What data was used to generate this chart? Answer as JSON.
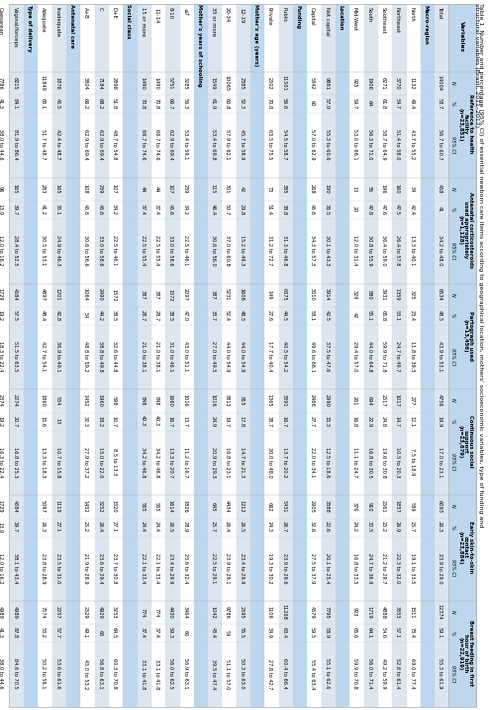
{
  "title_line1": "Table 1  Number and percentage (95% CI) of essential newborn care items according to geographical location, mothers' socioeconomic variables, type of funding and",
  "title_line2": "structural variables (Brazil, 2011–2012)",
  "col_headers": [
    [
      "Reference to health",
      "facility",
      "(n=23,851)"
    ],
    [
      "Antenatal corticosteroids",
      "used appropriately",
      "(n=1,128)"
    ],
    [
      "Partograph used",
      "(n=13,456)"
    ],
    [
      "Continuous social support",
      "(n=23,679)"
    ],
    [
      "Early skin-to-skin contact",
      "(n=23,884)"
    ],
    [
      "Breast feeding in first hour",
      "of birth",
      "(n=22,919)"
    ]
  ],
  "rows": [
    {
      "label": "Total",
      "is_header": false,
      "is_section": false,
      "ref": [
        14004,
        58.7,
        "56.7 to 60.7"
      ],
      "ante": [
        458,
        41,
        "34.2 to 48.0"
      ],
      "parto": [
        6534,
        48.5,
        "43.9 to 53.1"
      ],
      "cont": [
        4756,
        19.9,
        "17.0 to 23.1"
      ],
      "skin": [
        6093,
        26.3,
        "23.9 to 29.0"
      ],
      "bfeed": [
        12374,
        59.1,
        "55.3 to 61.9"
      ]
    },
    {
      "label": "Macro-region",
      "is_section": true,
      "ref": null,
      "ante": null,
      "parto": null,
      "cont": null,
      "skin": null,
      "bfeed": null
    },
    {
      "label": "North",
      "is_header": false,
      "is_section": false,
      "ref": [
        1132,
        49.4,
        "43.7 to 55.2"
      ],
      "ante": [
        34,
        42.4,
        "13.3 to 40.1"
      ],
      "parto": [
        325,
        23.4,
        "11.8 to 39.3"
      ],
      "cont": [
        277,
        12.1,
        "7.5 to 18.9"
      ],
      "skin": [
        589,
        25.7,
        "19.1 to 33.5"
      ],
      "bfeed": [
        1511,
        73.4,
        "69.0 to 77.4"
      ]
    },
    {
      "label": "Northeast",
      "is_header": false,
      "is_section": false,
      "ref": [
        3770,
        54.7,
        "51.4 to 58.0"
      ],
      "ante": [
        160,
        47.5,
        "26.4 to 57.8"
      ],
      "parto": [
        1359,
        53.1,
        "24.7 to 49.7"
      ],
      "cont": [
        1017,
        14.7,
        "10.5 to 20.3"
      ],
      "skin": [
        1857,
        26.9,
        "22.3 to 32.0"
      ],
      "bfeed": [
        3353,
        57.1,
        "52.8 to 61.4"
      ]
    },
    {
      "label": "Southeast",
      "is_header": false,
      "is_section": false,
      "ref": [
        6271,
        61.8,
        "58.7 to 64.9"
      ],
      "ante": [
        196,
        47.6,
        "36.4 to 59.0"
      ],
      "parto": [
        3931,
        65.8,
        "59.9 to 71.8"
      ],
      "cont": [
        2517,
        24.8,
        "19.6 to 30.8"
      ],
      "skin": [
        2561,
        25.2,
        "21.2 to 29.7"
      ],
      "bfeed": [
        4888,
        54.6,
        "49.2 to 59.9"
      ]
    },
    {
      "label": "South",
      "is_header": false,
      "is_section": false,
      "ref": [
        1906,
        64,
        "56.3 to 71.0"
      ],
      "ante": [
        55,
        47.8,
        "30.8 to 55.9"
      ],
      "parto": [
        880,
        55.1,
        "44.0 to 64.8"
      ],
      "cont": [
        694,
        22.9,
        "16.8 to 30.5"
      ],
      "skin": [
        910,
        30.5,
        "24.7 to 36.9"
      ],
      "bfeed": [
        1719,
        64.1,
        "56.0 to 71.4"
      ]
    },
    {
      "label": "Mid-West",
      "is_header": false,
      "is_section": false,
      "ref": [
        925,
        59.7,
        "53.0 to 66.1"
      ],
      "ante": [
        13,
        20,
        "12.0 to 31.4"
      ],
      "parto": [
        329,
        42,
        "29.4 to 57.0"
      ],
      "cont": [
        261,
        16.8,
        "11.1 to 24.7"
      ],
      "skin": [
        376,
        24.2,
        "16.8 to 33.5"
      ],
      "bfeed": [
        923,
        65.6,
        "59.9 to 70.8"
      ]
    },
    {
      "label": "Location",
      "is_section": true,
      "ref": null,
      "ante": null,
      "parto": null,
      "cont": null,
      "skin": null,
      "bfeed": null
    },
    {
      "label": "Not capital",
      "is_header": false,
      "is_section": false,
      "ref": [
        9861,
        57.9,
        "55.3 to 60.6"
      ],
      "ante": [
        190,
        36.5,
        "30.1 to 43.3"
      ],
      "parto": [
        3914,
        42.5,
        "37.5 to 47.6"
      ],
      "cont": [
        2990,
        15.3,
        "12.5 to 18.6"
      ],
      "skin": [
        3388,
        22.6,
        "20.1 to 25.4"
      ],
      "bfeed": [
        7795,
        58.9,
        "55.1 to 62.6"
      ]
    },
    {
      "label": "Capital",
      "is_header": false,
      "is_section": false,
      "ref": [
        5342,
        60,
        "57.0 to 62.9"
      ],
      "ante": [
        268,
        45.6,
        "34.3 to 57.3"
      ],
      "parto": [
        3010,
        58.1,
        "49.6 to 66.1"
      ],
      "cont": [
        2466,
        27.7,
        "22.0 to 34.1"
      ],
      "skin": [
        2905,
        32.6,
        "27.5 to 37.9"
      ],
      "bfeed": [
        4579,
        59.5,
        "55.4 to 63.4"
      ]
    },
    {
      "label": "Funding",
      "is_section": true,
      "ref": null,
      "ante": null,
      "parto": null,
      "cont": null,
      "skin": null,
      "bfeed": null
    },
    {
      "label": "Public",
      "is_header": false,
      "is_section": false,
      "ref": [
        11501,
        56.6,
        "54.5 to 58.7"
      ],
      "ante": [
        385,
        38.8,
        "31.3 to 46.8"
      ],
      "parto": [
        6375,
        44.5,
        "40.5 to 54.2"
      ],
      "cont": [
        3391,
        16.7,
        "13.7 to 20.2"
      ],
      "skin": [
        5431,
        26.7,
        "23.9 to 29.6"
      ],
      "bfeed": [
        11268,
        63.4,
        "60.4 to 66.4"
      ]
    },
    {
      "label": "Private",
      "is_header": false,
      "is_section": false,
      "ref": [
        2502,
        70.8,
        "65.5 to 75.5"
      ],
      "ante": [
        73,
        51.4,
        "31.2 to 72.7"
      ],
      "parto": [
        149,
        27.6,
        "17.7 to 40.4"
      ],
      "cont": [
        1365,
        38.7,
        "30.0 to 48.0"
      ],
      "skin": [
        662,
        24.3,
        "19.3 to 30.2"
      ],
      "bfeed": [
        1106,
        34.9,
        "27.8 to 42.7"
      ]
    },
    {
      "label": "Mother's age (years)",
      "is_section": true,
      "ref": null,
      "ante": null,
      "parto": null,
      "cont": null,
      "skin": null,
      "bfeed": null
    },
    {
      "label": "12-19",
      "is_header": false,
      "is_section": false,
      "ref": [
        2385,
        52.3,
        "45.7 to 58.9"
      ],
      "ante": [
        42,
        29.8,
        "15.2 to 49.3"
      ],
      "parto": [
        1606,
        48.5,
        "44.0 to 54.9"
      ],
      "cont": [
        815,
        17.8,
        "14.7 to 21.3"
      ],
      "skin": [
        1212,
        26.5,
        "23.4 to 29.9"
      ],
      "bfeed": [
        2595,
        55.5,
        "50.3 to 63.0"
      ]
    },
    {
      "label": "20-34",
      "is_header": false,
      "is_section": false,
      "ref": [
        10065,
        60.8,
        "57.9 to 62.1"
      ],
      "ante": [
        301,
        50.7,
        "37.0 to 60.8"
      ],
      "parto": [
        5231,
        52.4,
        "44.0 to 54.9"
      ],
      "cont": [
        3813,
        19.7,
        "16.8 to 23.1"
      ],
      "skin": [
        4434,
        26.4,
        "23.9 to 29.1"
      ],
      "bfeed": [
        9786,
        54,
        "51.1 to 57.0"
      ]
    },
    {
      "label": "35 or more",
      "is_header": false,
      "is_section": false,
      "ref": [
        1549,
        61.9,
        "53.4 to 69.8"
      ],
      "ante": [
        115,
        46.4,
        "30.6 to 56.0"
      ],
      "parto": [
        387,
        33.7,
        "27.0 to 49.5"
      ],
      "cont": [
        1016,
        24.9,
        "20.9 to 29.3"
      ],
      "skin": [
        645,
        25.7,
        "22.5 to 29.1"
      ],
      "bfeed": [
        1042,
        43.4,
        "39.5 to 47.4"
      ]
    },
    {
      "label": "Mother's years of schooling",
      "is_section": true,
      "ref": null,
      "ante": null,
      "parto": null,
      "cont": null,
      "skin": null,
      "bfeed": null
    },
    {
      "label": "≤7",
      "is_header": false,
      "is_section": false,
      "ref": [
        3285,
        56.3,
        "53.4 to 59.1"
      ],
      "ante": [
        239,
        34.2,
        "22.5 to 46.1"
      ],
      "parto": [
        2097,
        47.0,
        "43.0 to 51.1"
      ],
      "cont": [
        1016,
        13.7,
        "11.2 to 16.7"
      ],
      "skin": [
        1826,
        28.9,
        "25.6 to 32.4"
      ],
      "bfeed": [
        3464,
        60,
        "56.9 to 63.1"
      ]
    },
    {
      "label": "8-10",
      "is_header": false,
      "is_section": false,
      "ref": [
        5751,
        66.7,
        "62.9 to 69.4"
      ],
      "ante": [
        107,
        45.6,
        "33.0 to 58.6"
      ],
      "parto": [
        1572,
        38.5,
        "31.0 to 46.1"
      ],
      "cont": [
        1660,
        16.7,
        "13.3 to 20.7"
      ],
      "skin": [
        1614,
        26.5,
        "23.4 to 29.9"
      ],
      "bfeed": [
        4430,
        59.3,
        "56.0 to 62.5"
      ]
    },
    {
      "label": "11-14",
      "is_header": false,
      "is_section": false,
      "ref": [
        1490,
        70.8,
        "66.7 to 74.6"
      ],
      "ante": [
        44,
        37.4,
        "22.5 to 55.4"
      ],
      "parto": [
        387,
        28.7,
        "21.0 to 38.1"
      ],
      "cont": [
        848,
        40.3,
        "34.2 to 46.8"
      ],
      "skin": [
        565,
        24.4,
        "22.1 to 33.4"
      ],
      "bfeed": [
        774,
        37.4,
        "33.1 to 41.8"
      ]
    },
    {
      "label": "15 or more",
      "is_header": false,
      "is_section": false,
      "ref": [
        1490,
        70.8,
        "66.7 to 74.6"
      ],
      "ante": [
        44,
        37.4,
        "22.5 to 55.4"
      ],
      "parto": [
        387,
        28.7,
        "21.0 to 38.1"
      ],
      "cont": [
        848,
        40.3,
        "34.2 to 46.8"
      ],
      "skin": [
        565,
        24.4,
        "22.1 to 33.4"
      ],
      "bfeed": [
        774,
        37.4,
        "33.1 to 41.8"
      ]
    },
    {
      "label": "Social class",
      "is_section": true,
      "ref": null,
      "ante": null,
      "parto": null,
      "cont": null,
      "skin": null,
      "bfeed": null
    },
    {
      "label": "D+E",
      "is_header": false,
      "is_section": false,
      "ref": [
        2898,
        51.8,
        "48.7 to 54.8"
      ],
      "ante": [
        107,
        34.2,
        "22.5 to 46.1"
      ],
      "parto": [
        1572,
        38.5,
        "32.6 to 44.8"
      ],
      "cont": [
        598,
        10.7,
        "8.5 to 13.3"
      ],
      "skin": [
        1520,
        27.1,
        "23.7 to 30.8"
      ],
      "bfeed": [
        3253,
        64.5,
        "60.3 to 70.8"
      ]
    },
    {
      "label": "C",
      "is_header": false,
      "is_section": false,
      "ref": [
        7184,
        68.2,
        "62.9 to 69.4"
      ],
      "ante": [
        239,
        45.6,
        "33.0 to 58.6"
      ],
      "parto": [
        2490,
        44.2,
        "38.8 to 49.8"
      ],
      "cont": [
        1960,
        18.2,
        "15.0 to 22.0"
      ],
      "skin": [
        3252,
        26.4,
        "23.6 to 29.4"
      ],
      "bfeed": [
        4929,
        60,
        "56.8 to 63.1"
      ]
    },
    {
      "label": "A+B",
      "is_header": false,
      "is_section": false,
      "ref": [
        3804,
        66.2,
        "62.9 to 69.4"
      ],
      "ante": [
        108,
        45.6,
        "30.6 to 56.6"
      ],
      "parto": [
        1064,
        54,
        "48.8 to 59.2"
      ],
      "cont": [
        1452,
        32.3,
        "27.9 to 37.2"
      ],
      "skin": [
        1452,
        25.2,
        "21.9 to 28.9"
      ],
      "bfeed": [
        2529,
        49.1,
        "45.0 to 53.2"
      ]
    },
    {
      "label": "Antenatal care",
      "is_section": true,
      "ref": null,
      "ante": null,
      "parto": null,
      "cont": null,
      "skin": null,
      "bfeed": null
    },
    {
      "label": "Inadequate",
      "is_header": false,
      "is_section": false,
      "ref": [
        1876,
        45.5,
        "42.4 to 48.7"
      ],
      "ante": [
        165,
        35.1,
        "24.9 to 46.3"
      ],
      "parto": [
        1201,
        42.8,
        "36.9 to 49.1"
      ],
      "cont": [
        534,
        13,
        "10.7 to 15.8"
      ],
      "skin": [
        1119,
        27.1,
        "23.5 to 31.0"
      ],
      "bfeed": [
        2257,
        57.7,
        "53.6 to 61.6"
      ]
    },
    {
      "label": "Adequate",
      "is_header": false,
      "is_section": false,
      "ref": [
        11849,
        65.1,
        "51.7 to 48.7"
      ],
      "ante": [
        283,
        41.2,
        "30.5 to 53.1"
      ],
      "parto": [
        4897,
        48.4,
        "42.7 to 54.1"
      ],
      "cont": [
        1860,
        15.6,
        "13.3 to 18.3"
      ],
      "skin": [
        5067,
        26.3,
        "23.8 to 28.9"
      ],
      "bfeed": [
        7574,
        53.2,
        "50.2 to 56.1"
      ]
    },
    {
      "label": "Type of delivery",
      "is_section": true,
      "ref": null,
      "ante": null,
      "parto": null,
      "cont": null,
      "skin": null,
      "bfeed": null
    },
    {
      "label": "Vaginal/forceps",
      "is_header": false,
      "is_section": false,
      "ref": [
        8215,
        84.1,
        "81.9 to 86.4"
      ],
      "ante": [
        165,
        39.7,
        "28.4 to 52.5"
      ],
      "parto": [
        4584,
        57.5,
        "51.5 to 63.5"
      ],
      "cont": [
        2274,
        20.7,
        "16.8 to 25.3"
      ],
      "skin": [
        4584,
        39.7,
        "38.1 to 43.4"
      ],
      "bfeed": [
        4989,
        87.8,
        "84.6 to 70.5"
      ]
    },
    {
      "label": "Caesarean",
      "is_header": false,
      "is_section": false,
      "ref": [
        7786,
        41.3,
        "38.0 to 44.6"
      ],
      "ante": [
        96,
        13.9,
        "12.0 to 16.2"
      ],
      "parto": [
        1729,
        19.2,
        "18.3 to 22.4"
      ],
      "cont": [
        2374,
        19.2,
        "16.3 to 22.4"
      ],
      "skin": [
        1729,
        13.9,
        "12.0 to 16.2"
      ],
      "bfeed": [
        4989,
        41.3,
        "38.0 to 44.6"
      ]
    }
  ],
  "bg_col_header": "#bdd7ee",
  "bg_section": "#bdd7ee",
  "bg_data_blue": "#dce6f1",
  "bg_data_white": "#ffffff",
  "border_color": "#aaaaaa",
  "text_color": "#000000",
  "font_size": 4.0,
  "header_font_size": 4.2
}
